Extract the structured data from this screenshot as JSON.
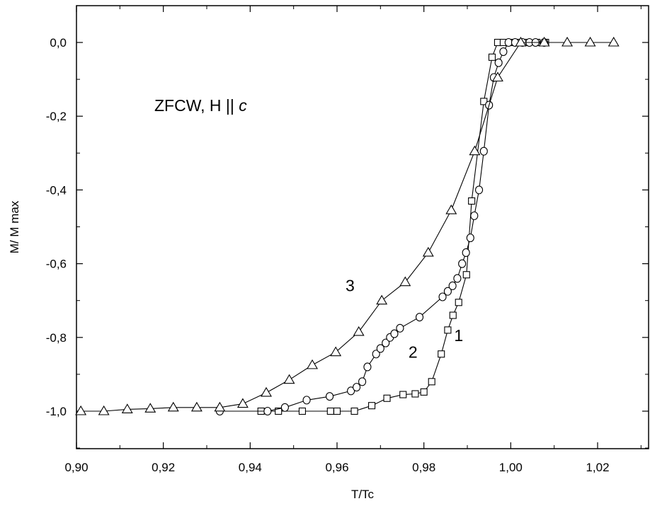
{
  "chart_data": {
    "type": "line",
    "title": "",
    "xlabel": "T/Tc",
    "ylabel": "M/ M max",
    "xlim": [
      0.9,
      1.03
    ],
    "ylim": [
      -1.1,
      0.1
    ],
    "x_ticks": [
      0.9,
      0.92,
      0.94,
      0.96,
      0.98,
      1.0,
      1.02
    ],
    "x_tick_labels": [
      "0,90",
      "0,92",
      "0,94",
      "0,96",
      "0,98",
      "1,00",
      "1,02"
    ],
    "y_ticks": [
      0.0,
      -0.2,
      -0.4,
      -0.6,
      -0.8,
      -1.0
    ],
    "y_tick_labels": [
      "0,0",
      "-0,2",
      "-0,4",
      "-0,6",
      "-0,8",
      "-1,0"
    ],
    "grid": false,
    "annotation": {
      "prefix": "ZFCW,  H || ",
      "italic": "c"
    },
    "series": [
      {
        "name": "1",
        "marker": "square",
        "label_x": 0.988,
        "label_y": -0.81,
        "x": [
          0.9425,
          0.9465,
          0.952,
          0.9585,
          0.96,
          0.964,
          0.968,
          0.9715,
          0.9752,
          0.978,
          0.98,
          0.9818,
          0.984,
          0.9855,
          0.9867,
          0.988,
          0.9898,
          0.991,
          0.9938,
          0.9957,
          0.997,
          0.9983,
          1.0005,
          1.002,
          1.004,
          1.006,
          1.008
        ],
        "y": [
          -1.0,
          -1.0,
          -1.0,
          -1.0,
          -1.0,
          -1.0,
          -0.985,
          -0.965,
          -0.955,
          -0.953,
          -0.948,
          -0.92,
          -0.845,
          -0.78,
          -0.74,
          -0.705,
          -0.63,
          -0.43,
          -0.16,
          -0.04,
          0.0,
          0.0,
          0.0,
          0.0,
          0.0,
          0.0,
          0.0
        ]
      },
      {
        "name": "2",
        "marker": "circle",
        "label_x": 0.9775,
        "label_y": -0.855,
        "x": [
          0.933,
          0.944,
          0.948,
          0.953,
          0.9583,
          0.9632,
          0.9645,
          0.9658,
          0.967,
          0.969,
          0.97,
          0.9712,
          0.9722,
          0.9732,
          0.9745,
          0.979,
          0.9843,
          0.9855,
          0.9866,
          0.9877,
          0.9888,
          0.9897,
          0.9907,
          0.9916,
          0.9927,
          0.9938,
          0.995,
          0.9961,
          0.9972,
          0.9983,
          0.9995,
          1.001,
          1.0027,
          1.0043,
          1.0057,
          1.0077
        ],
        "y": [
          -1.0,
          -1.0,
          -0.99,
          -0.97,
          -0.96,
          -0.945,
          -0.935,
          -0.92,
          -0.88,
          -0.845,
          -0.83,
          -0.815,
          -0.8,
          -0.79,
          -0.775,
          -0.745,
          -0.69,
          -0.675,
          -0.66,
          -0.64,
          -0.6,
          -0.57,
          -0.53,
          -0.47,
          -0.4,
          -0.295,
          -0.17,
          -0.095,
          -0.055,
          -0.025,
          0.0,
          0.0,
          0.0,
          0.0,
          0.0,
          0.0
        ]
      },
      {
        "name": "3",
        "marker": "triangle",
        "label_x": 0.963,
        "label_y": -0.675,
        "x": [
          0.901,
          0.9063,
          0.9117,
          0.917,
          0.9223,
          0.9277,
          0.933,
          0.9383,
          0.9437,
          0.949,
          0.9543,
          0.9597,
          0.965,
          0.9703,
          0.9757,
          0.981,
          0.9863,
          0.9917,
          0.997,
          1.0023,
          1.0077,
          1.013,
          1.0183,
          1.0237
        ],
        "y": [
          -1.0,
          -1.0,
          -0.995,
          -0.993,
          -0.99,
          -0.99,
          -0.99,
          -0.98,
          -0.95,
          -0.915,
          -0.875,
          -0.84,
          -0.785,
          -0.7,
          -0.65,
          -0.57,
          -0.455,
          -0.295,
          -0.095,
          0.0,
          0.0,
          0.0,
          0.0,
          0.0
        ]
      }
    ]
  }
}
